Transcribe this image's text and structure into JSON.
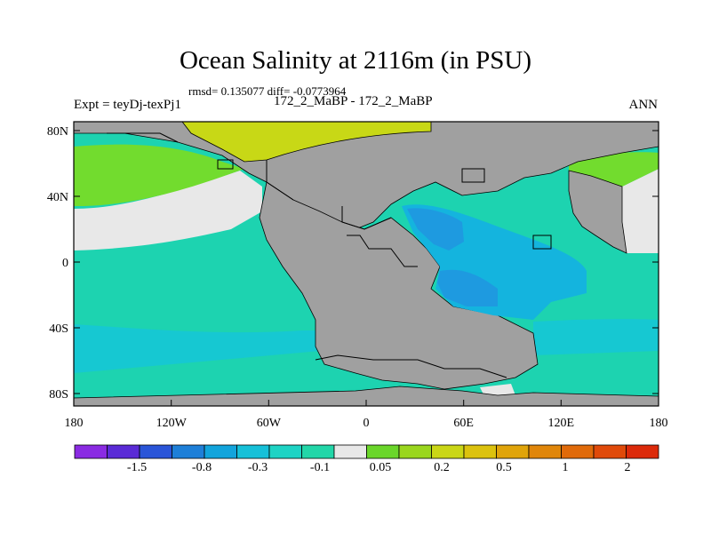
{
  "title": "Ocean Salinity at 2116m (in PSU)",
  "stats_line": "rmsd= 0.135077 diff= -0.0773964",
  "left_label": "Expt = teyDj-texPj1",
  "center_label": "172_2_MaBP - 172_2_MaBP",
  "right_label": "ANN",
  "lat_ticks": [
    "80N",
    "40N",
    "0",
    "40S",
    "80S"
  ],
  "lon_ticks": [
    "180",
    "120W",
    "60W",
    "0",
    "60E",
    "120E",
    "180"
  ],
  "colorbar": {
    "colors": [
      "#8a2be2",
      "#5a2bd6",
      "#2a55d8",
      "#1e7fd8",
      "#12a4dc",
      "#16c0d8",
      "#1ed3c4",
      "#22d6a8",
      "#e8e8e8",
      "#6ad62a",
      "#9ad61e",
      "#cad616",
      "#dcc20e",
      "#e0a40a",
      "#e0860a",
      "#e06a0a",
      "#e04a0a",
      "#dc2a0a"
    ],
    "labels": [
      "-1.5",
      "-0.8",
      "-0.3",
      "-0.1",
      "0.05",
      "0.2",
      "0.5",
      "1",
      "2"
    ]
  },
  "map_colors": {
    "land": "#a0a0a0",
    "teal": "#1dd3b0",
    "cyan_light": "#16c8d2",
    "blue_mid": "#14b4de",
    "blue_dark": "#1e9ae0",
    "near_zero": "#e8e8e8",
    "green": "#72dc2e",
    "yellow_green": "#c8d816"
  }
}
